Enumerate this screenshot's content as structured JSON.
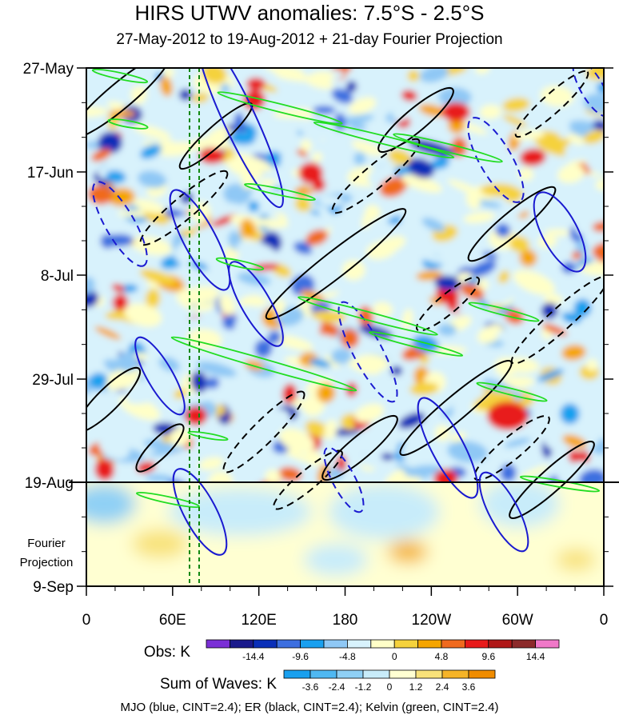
{
  "chart_data": {
    "type": "heatmap",
    "title": "HIRS UTWV anomalies: 7.5°S - 2.5°S",
    "subtitle": "27-May-2012 to 19-Aug-2012 + 21-day Fourier Projection",
    "x_axis": {
      "ticks": [
        "0",
        "60E",
        "120E",
        "180",
        "120W",
        "60W",
        "0"
      ],
      "range_deg_east": [
        0,
        360
      ]
    },
    "y_axis": {
      "ticks": [
        "27-May",
        "17-Jun",
        "8-Jul",
        "29-Jul",
        "19-Aug",
        "9-Sep"
      ],
      "range_days_from_start": [
        0,
        105
      ],
      "observation_end_label": "19-Aug"
    },
    "projection_label_line1": "Fourier",
    "projection_label_line2": "Projection",
    "obs_colorbar": {
      "label": "Obs: K",
      "levels": [
        "-14.4",
        "-9.6",
        "-4.8",
        "0",
        "4.8",
        "9.6",
        "14.4"
      ],
      "level_values": [
        -14.4,
        -9.6,
        -4.8,
        0,
        4.8,
        9.6,
        14.4
      ],
      "colors": [
        "#7b2fd6",
        "#1a1a8c",
        "#0a2fb8",
        "#3d6fe0",
        "#19a0ef",
        "#8fc8f5",
        "#d8f2fc",
        "#ffffc8",
        "#f5d23c",
        "#f5a500",
        "#f06a1e",
        "#e81a1a",
        "#b01818",
        "#8c2a2a",
        "#f078c8"
      ]
    },
    "waves_colorbar": {
      "label": "Sum of Waves: K",
      "levels": [
        "-3.6",
        "-2.4",
        "-1.2",
        "0",
        "1.2",
        "2.4",
        "3.6"
      ],
      "level_values": [
        -3.6,
        -2.4,
        -1.2,
        0,
        1.2,
        2.4,
        3.6
      ],
      "colors": [
        "#19a0ef",
        "#4fb8f2",
        "#8fd0f5",
        "#c8ecfa",
        "#ffffd2",
        "#f8e27a",
        "#f5b428",
        "#f08c00"
      ]
    },
    "wave_contours": [
      {
        "name": "MJO",
        "color": "#1a1ad0",
        "cint": 2.4
      },
      {
        "name": "ER",
        "color": "#000000",
        "cint": 2.4
      },
      {
        "name": "Kelvin",
        "color": "#22dd22",
        "cint": 2.4
      }
    ],
    "reference_lines_deg_east": [
      72,
      78
    ],
    "footer": "MJO (blue, CINT=2.4); ER (black, CINT=2.4); Kelvin (green, CINT=2.4)"
  }
}
